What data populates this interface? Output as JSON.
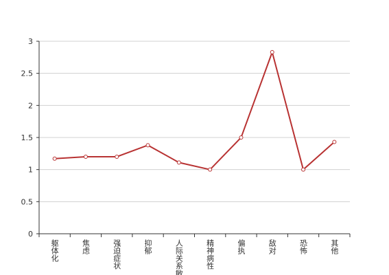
{
  "chart_data": {
    "type": "line",
    "categories": [
      "躯体化",
      "焦虑",
      "强迫症状",
      "抑郁",
      "人际关系敏感",
      "精神病性",
      "偏执",
      "敌对",
      "恐怖",
      "其他"
    ],
    "values": [
      1.17,
      1.2,
      1.2,
      1.38,
      1.11,
      1.0,
      1.5,
      2.83,
      1.0,
      1.43
    ],
    "color": "#b83232",
    "ylim": [
      0,
      3
    ],
    "yticks": [
      0,
      0.5,
      1,
      1.5,
      2,
      2.5,
      3
    ],
    "grid": true
  }
}
